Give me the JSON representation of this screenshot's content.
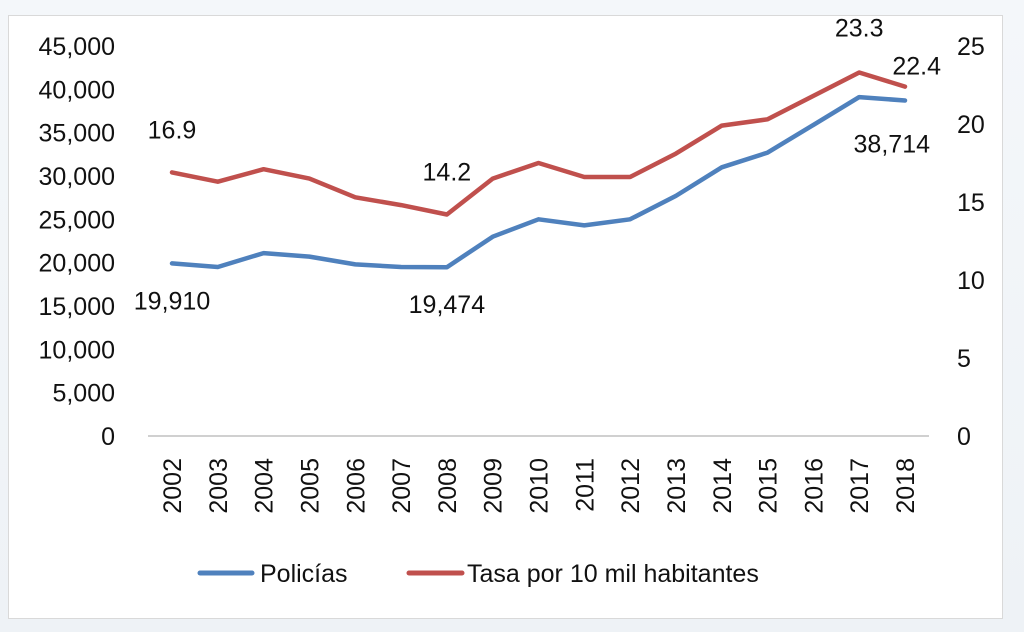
{
  "chart_data": {
    "type": "line",
    "title": "",
    "xlabel": "",
    "ylabel": "",
    "y2label": "",
    "categories": [
      "2002",
      "2003",
      "2004",
      "2005",
      "2006",
      "2007",
      "2008",
      "2009",
      "2010",
      "2011",
      "2012",
      "2013",
      "2014",
      "2015",
      "2016",
      "2017",
      "2018"
    ],
    "ylim": [
      0,
      45000
    ],
    "y2lim": [
      0,
      25
    ],
    "yticks": [
      "0",
      "5,000",
      "10,000",
      "15,000",
      "20,000",
      "25,000",
      "30,000",
      "35,000",
      "40,000",
      "45,000"
    ],
    "y2ticks": [
      "0",
      "5",
      "10",
      "15",
      "20",
      "25"
    ],
    "grid": false,
    "legend_position": "bottom",
    "series": [
      {
        "name": "Policías",
        "axis": "left",
        "color": "#4f81bd",
        "values": [
          19910,
          19500,
          21100,
          20700,
          19800,
          19500,
          19474,
          23000,
          25000,
          24300,
          25000,
          27700,
          31000,
          32700,
          35900,
          39100,
          38714
        ]
      },
      {
        "name": "Tasa por 10 mil habitantes",
        "axis": "right",
        "color": "#c0504d",
        "values": [
          16.9,
          16.3,
          17.1,
          16.5,
          15.3,
          14.8,
          14.2,
          16.5,
          17.5,
          16.6,
          16.6,
          18.1,
          19.9,
          20.3,
          21.8,
          23.3,
          22.4
        ]
      }
    ],
    "annotations": [
      {
        "series": 0,
        "index": 0,
        "text": "19,910"
      },
      {
        "series": 0,
        "index": 6,
        "text": "19,474"
      },
      {
        "series": 0,
        "index": 16,
        "text": "38,714"
      },
      {
        "series": 1,
        "index": 0,
        "text": "16.9"
      },
      {
        "series": 1,
        "index": 6,
        "text": "14.2"
      },
      {
        "series": 1,
        "index": 15,
        "text": "23.3"
      },
      {
        "series": 1,
        "index": 16,
        "text": "22.4"
      }
    ]
  }
}
